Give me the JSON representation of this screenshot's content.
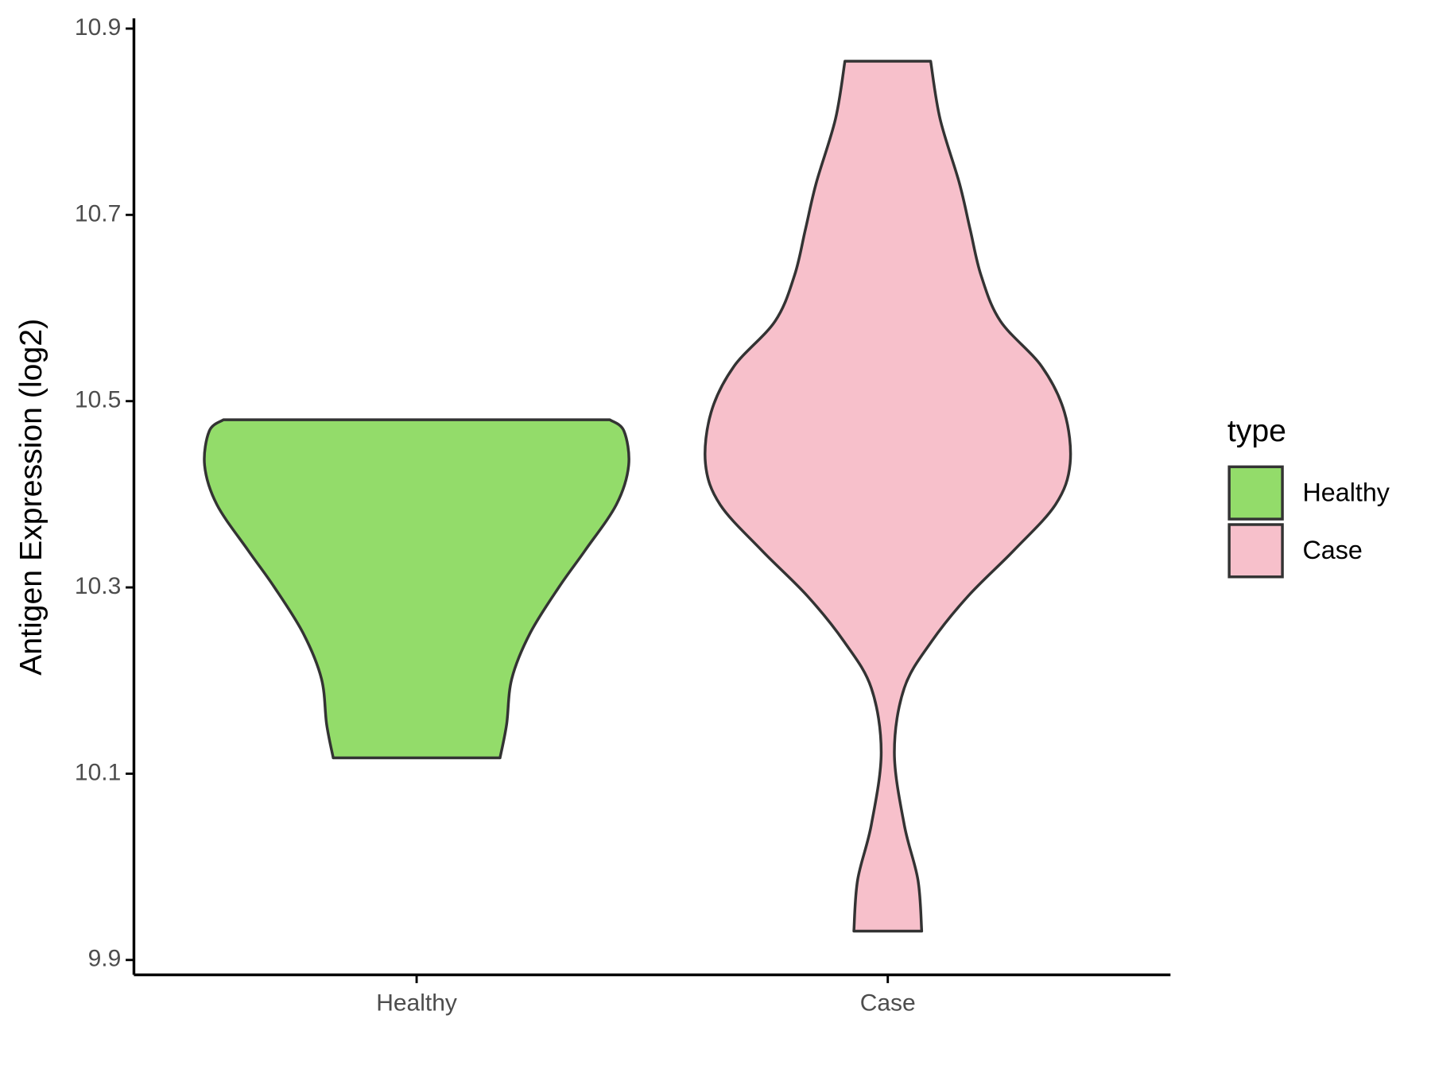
{
  "chart_data": {
    "type": "violin",
    "y_label": "Antigen Expression (log2)",
    "categories": [
      "Healthy",
      "Case"
    ],
    "ylim": [
      9.884,
      10.911
    ],
    "yticks": [
      9.9,
      10.1,
      10.3,
      10.5,
      10.7,
      10.9
    ],
    "legend_title": "type",
    "legend_position": "right",
    "series": [
      {
        "name": "Healthy",
        "color": "#93dc6a",
        "y": [
          10.48,
          10.468,
          10.431,
          10.389,
          10.34,
          10.301,
          10.251,
          10.202,
          10.153,
          10.117
        ],
        "width": [
          0.41,
          0.44,
          0.45,
          0.424,
          0.358,
          0.303,
          0.241,
          0.202,
          0.191,
          0.177
        ]
      },
      {
        "name": "Case",
        "color": "#f7c0cb",
        "y": [
          10.865,
          10.803,
          10.734,
          10.684,
          10.635,
          10.586,
          10.537,
          10.488,
          10.433,
          10.389,
          10.34,
          10.291,
          10.242,
          10.192,
          10.123,
          10.045,
          9.986,
          9.931
        ],
        "width": [
          0.091,
          0.111,
          0.152,
          0.175,
          0.198,
          0.239,
          0.327,
          0.375,
          0.387,
          0.356,
          0.268,
          0.171,
          0.093,
          0.035,
          0.014,
          0.035,
          0.064,
          0.072
        ]
      }
    ]
  }
}
